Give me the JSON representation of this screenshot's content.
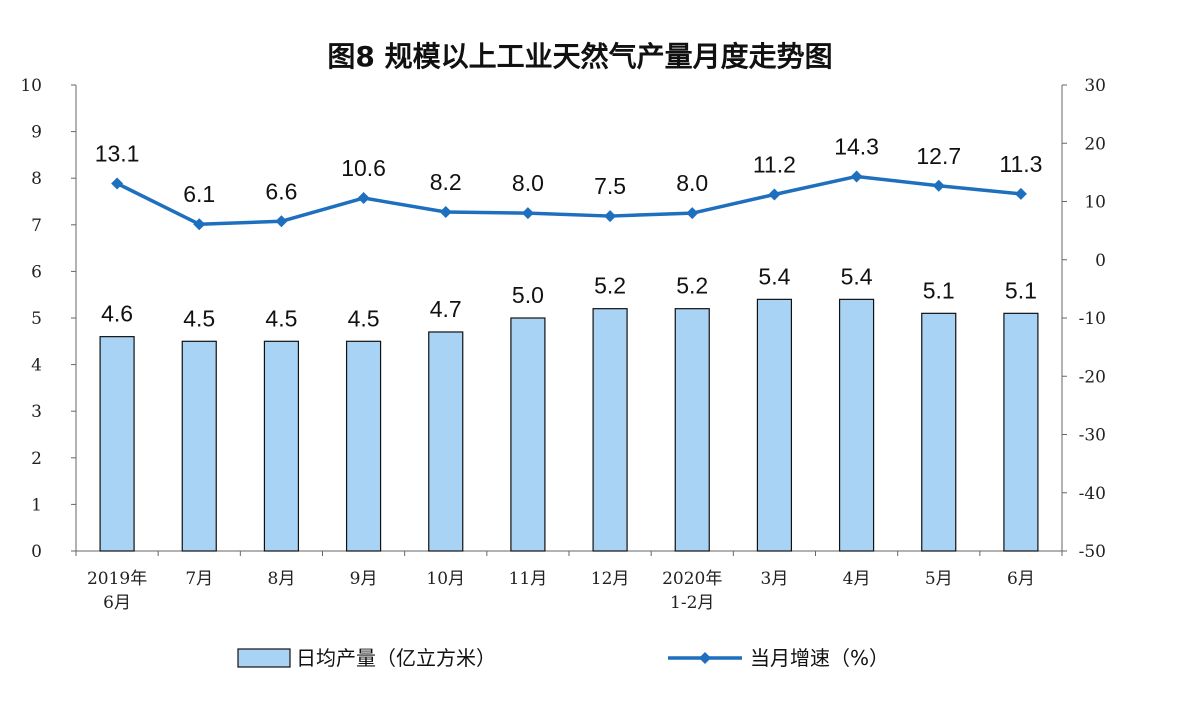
{
  "chart_data": {
    "type": "bar",
    "title": "图8  规模以上工业天然气产量月度走势图",
    "categories": [
      [
        "2019年",
        "6月"
      ],
      [
        "7月"
      ],
      [
        "8月"
      ],
      [
        "9月"
      ],
      [
        "10月"
      ],
      [
        "11月"
      ],
      [
        "12月"
      ],
      [
        "2020年",
        "1-2月"
      ],
      [
        "3月"
      ],
      [
        "4月"
      ],
      [
        "5月"
      ],
      [
        "6月"
      ]
    ],
    "series": [
      {
        "name": "日均产量（亿立方米）",
        "type": "bar",
        "axis": "left",
        "values": [
          4.6,
          4.5,
          4.5,
          4.5,
          4.7,
          5.0,
          5.2,
          5.2,
          5.4,
          5.4,
          5.1,
          5.1
        ],
        "color": "#a9d3f5",
        "border": "#111111"
      },
      {
        "name": "当月增速（%）",
        "type": "line",
        "axis": "right",
        "values": [
          13.1,
          6.1,
          6.6,
          10.6,
          8.2,
          8.0,
          7.5,
          8.0,
          11.2,
          14.3,
          12.7,
          11.3
        ],
        "color": "#1f6fbf"
      }
    ],
    "y_left": {
      "min": 0,
      "max": 10,
      "ticks": [
        0,
        1,
        2,
        3,
        4,
        5,
        6,
        7,
        8,
        9,
        10
      ]
    },
    "y_right": {
      "min": -50,
      "max": 30,
      "ticks": [
        -50,
        -40,
        -30,
        -20,
        -10,
        0,
        10,
        20,
        30
      ]
    },
    "grid": false,
    "legend_position": "bottom"
  }
}
